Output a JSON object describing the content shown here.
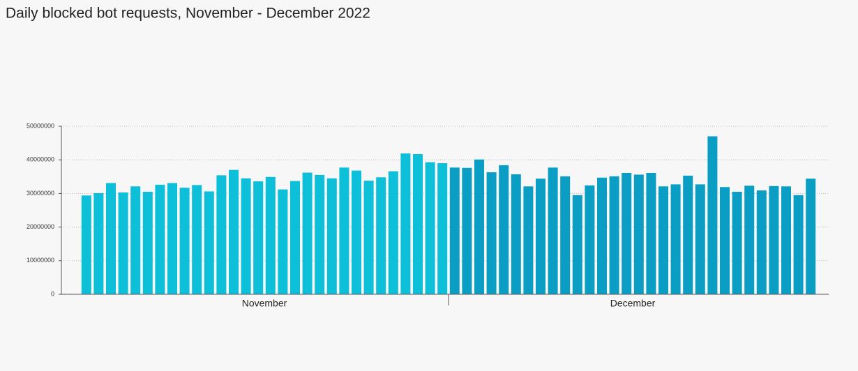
{
  "chart_data": {
    "type": "bar",
    "title": "Daily blocked bot requests, November - December 2022",
    "ylim": [
      0,
      50000000
    ],
    "yticks": [
      0,
      10000000,
      20000000,
      30000000,
      40000000,
      50000000
    ],
    "grid": true,
    "series": [
      {
        "name": "November",
        "color": "#0dbfd9",
        "values": [
          29400000,
          30100000,
          33100000,
          30300000,
          32100000,
          30500000,
          32600000,
          33100000,
          31700000,
          32500000,
          30600000,
          35400000,
          37000000,
          34500000,
          33600000,
          34900000,
          31200000,
          33700000,
          36200000,
          35500000,
          34500000,
          37700000,
          36800000,
          33800000,
          34800000,
          36600000,
          41900000,
          41700000,
          39300000,
          39000000
        ]
      },
      {
        "name": "December",
        "color": "#0a9ec4",
        "values": [
          37700000,
          37600000,
          40100000,
          36300000,
          38400000,
          35700000,
          32100000,
          34400000,
          37700000,
          35100000,
          29500000,
          32400000,
          34700000,
          35100000,
          36100000,
          35600000,
          36100000,
          32100000,
          32700000,
          35300000,
          32700000,
          47000000,
          31900000,
          30500000,
          32300000,
          30900000,
          32200000,
          32100000,
          29500000,
          34400000
        ]
      }
    ]
  }
}
